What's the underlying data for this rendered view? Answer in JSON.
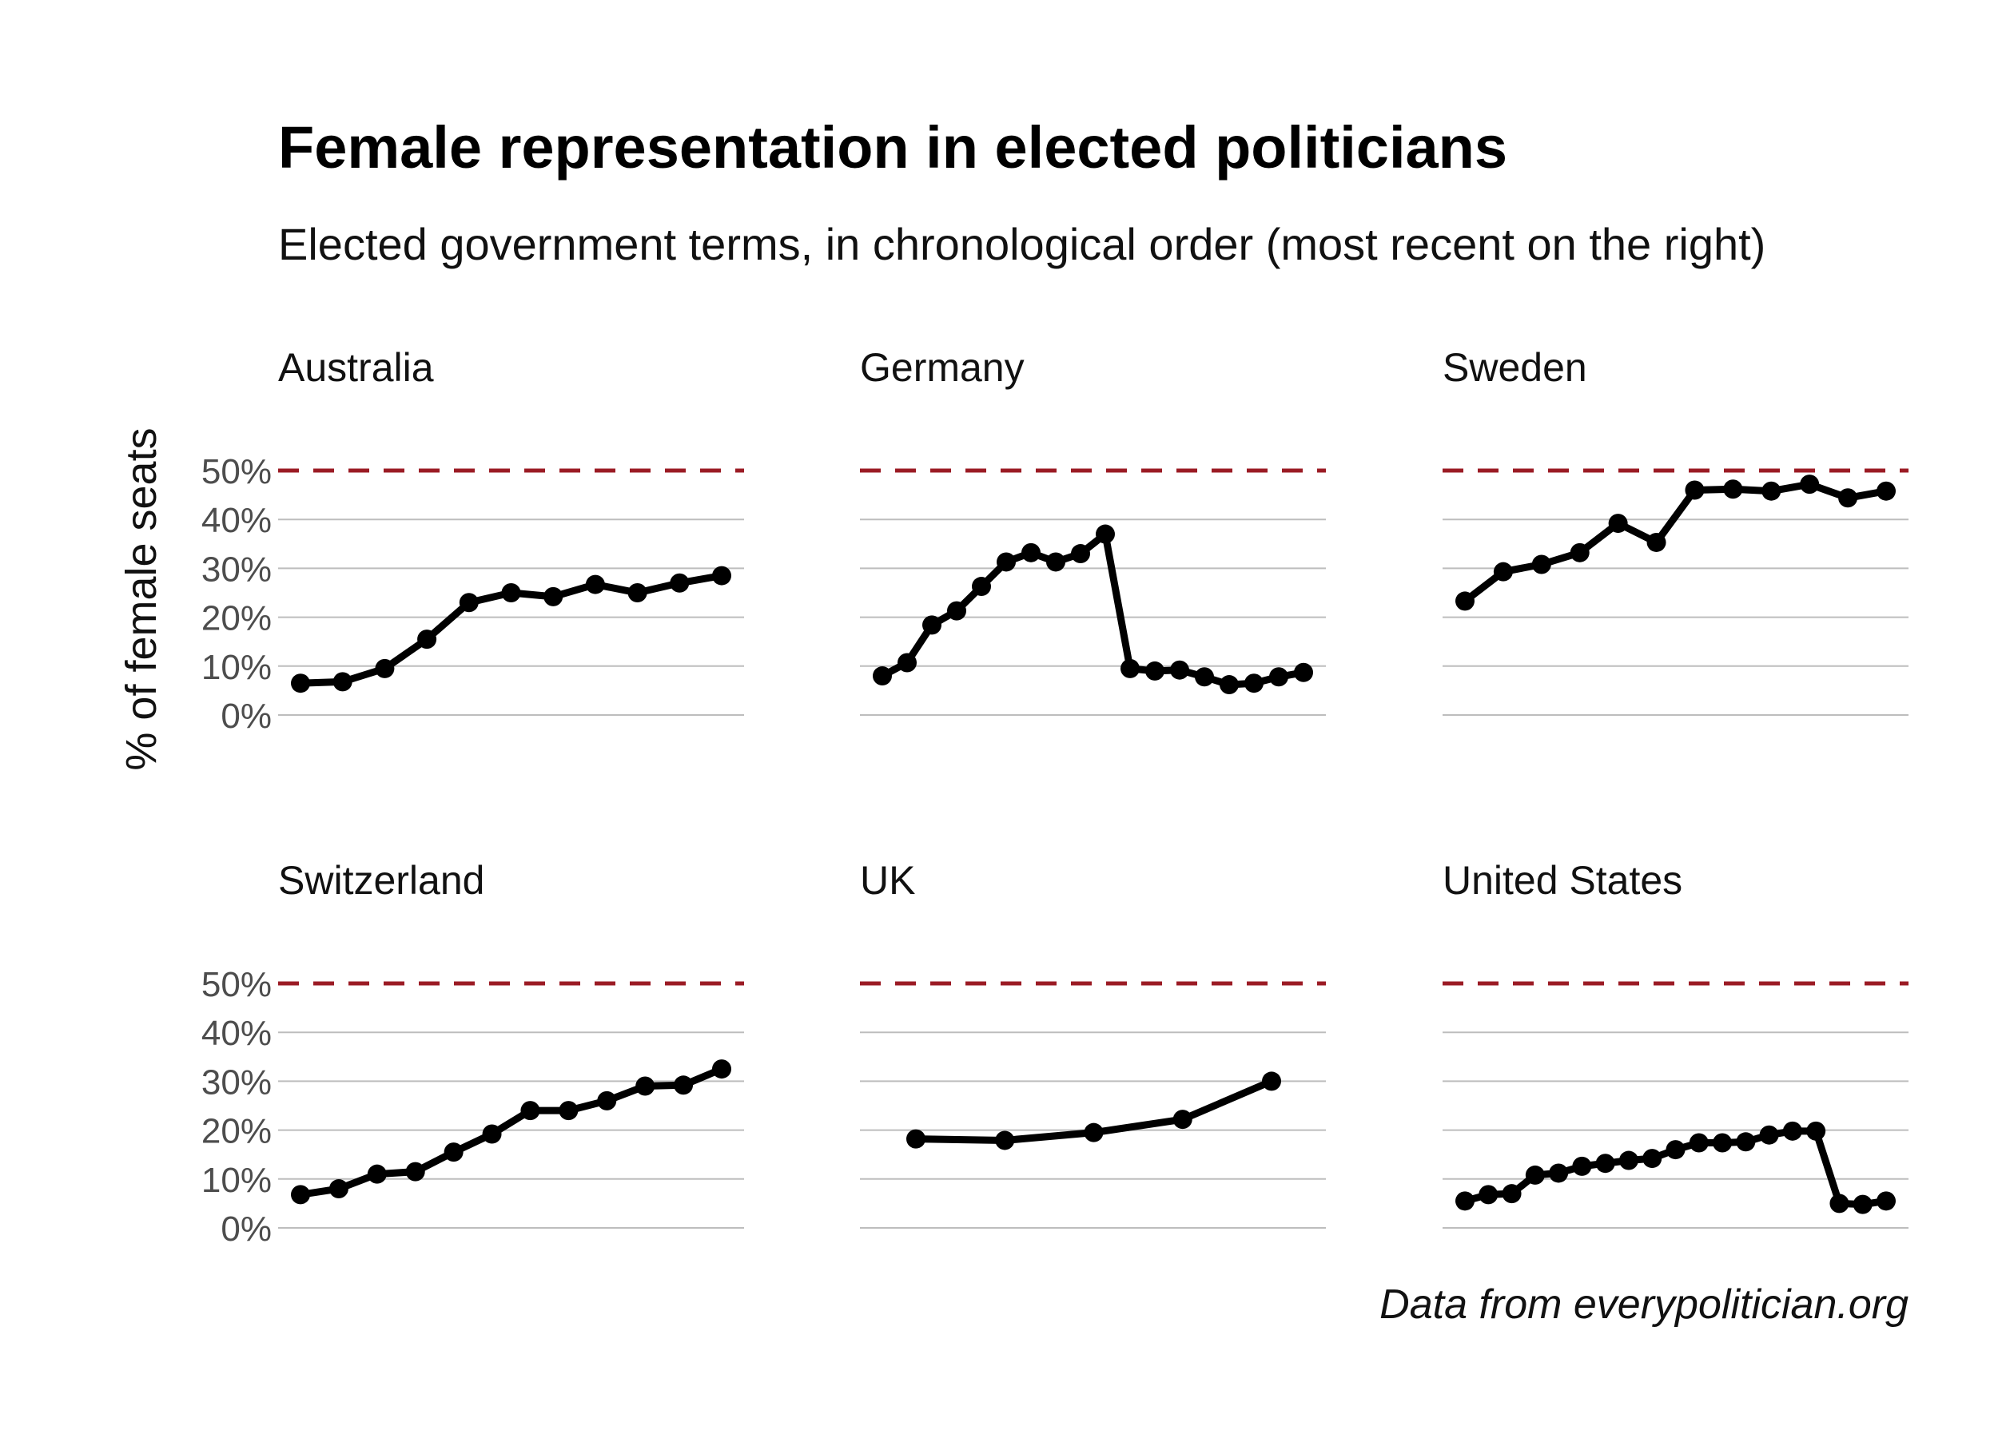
{
  "title": "Female representation in elected politicians",
  "subtitle": "Elected government terms, in chronological order (most recent on the right)",
  "caption": "Data from everypolitician.org",
  "colors": {
    "line": "#000000",
    "reference": "#9b1b24",
    "grid": "#bdbdbd",
    "tick_text": "#4d4d4d"
  },
  "chart_data": {
    "type": "line",
    "layout": "small-multiples",
    "ylabel": "% of female seats",
    "ylim": [
      0,
      50
    ],
    "yticks": [
      0,
      10,
      20,
      30,
      40,
      50
    ],
    "ytick_labels": [
      "0%",
      "10%",
      "20%",
      "30%",
      "40%",
      "50%"
    ],
    "grid": true,
    "reference_line": {
      "y": 50,
      "style": "dashed"
    },
    "x_axis": "elected government terms, chronological order",
    "panels": [
      {
        "name": "Australia",
        "values": [
          6.5,
          6.8,
          9.5,
          15.5,
          23,
          25,
          24.2,
          26.7,
          25,
          27,
          28.5
        ]
      },
      {
        "name": "Germany",
        "values": [
          8,
          10.7,
          18.4,
          21.3,
          26.3,
          31.3,
          33.2,
          31.3,
          33,
          37,
          9.5,
          9,
          9.2,
          7.8,
          6.2,
          6.5,
          7.8,
          8.7
        ]
      },
      {
        "name": "Sweden",
        "values": [
          23.3,
          29.3,
          30.8,
          33.2,
          39.2,
          35.3,
          46,
          46.2,
          45.8,
          47.2,
          44.4,
          45.8
        ]
      },
      {
        "name": "Switzerland",
        "values": [
          6.8,
          8,
          11,
          11.5,
          15.5,
          19.2,
          24,
          24,
          26,
          29,
          29.2,
          32.5
        ]
      },
      {
        "name": "UK",
        "values": [
          18.2,
          17.9,
          19.5,
          22.2,
          30
        ]
      },
      {
        "name": "United States",
        "values": [
          5.5,
          6.8,
          7,
          10.8,
          11.2,
          12.6,
          13.2,
          13.8,
          14.2,
          16,
          17.4,
          17.4,
          17.6,
          19,
          19.8,
          19.8,
          5,
          4.8,
          5.5
        ]
      }
    ]
  }
}
